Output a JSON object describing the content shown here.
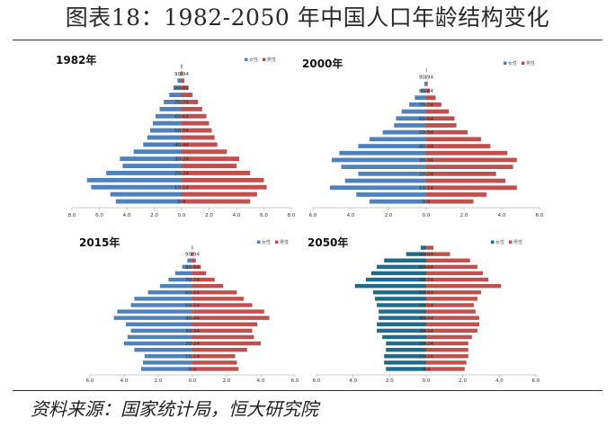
{
  "title": "图表18：1982-2050 年中国人口年龄结构变化",
  "source": "资料来源：国家统计局，恒大研究院",
  "chart_data": [
    {
      "type": "bar",
      "subtype": "population-pyramid",
      "title": "1982年",
      "legend": [
        "女性",
        "男性"
      ],
      "legend_position": "top-right",
      "x_ticks": [
        "8.0",
        "6.0",
        "4.0",
        "2.0",
        "0.0",
        "2.0",
        "4.0",
        "6.0",
        "8.0"
      ],
      "xlim": [
        -8,
        8
      ],
      "age_labels": [
        "0-4",
        "10-14",
        "20-24",
        "30-34",
        "40-44",
        "50-54",
        "60-64",
        "70-74",
        "80-84",
        "90-94"
      ],
      "series": [
        {
          "name": "女性",
          "color": "#4f81bd",
          "values": [
            4.8,
            5.2,
            6.6,
            6.9,
            5.5,
            4.3,
            4.5,
            3.5,
            2.8,
            2.5,
            2.3,
            2.1,
            1.9,
            1.6,
            1.3,
            0.9,
            0.6,
            0.3,
            0.1,
            0.05
          ]
        },
        {
          "name": "男性",
          "color": "#c0504d",
          "values": [
            5.0,
            5.5,
            6.2,
            6.0,
            5.0,
            4.0,
            4.2,
            3.3,
            2.6,
            2.4,
            2.2,
            2.0,
            1.8,
            1.5,
            1.2,
            0.8,
            0.5,
            0.2,
            0.08,
            0.03
          ]
        }
      ]
    },
    {
      "type": "bar",
      "subtype": "population-pyramid",
      "title": "2000年",
      "legend": [
        "女性",
        "男性"
      ],
      "legend_position": "top-right",
      "x_ticks": [
        "6.0",
        "4.0",
        "2.0",
        "0.0",
        "2.0",
        "4.0",
        "6.0"
      ],
      "xlim": [
        -6,
        6
      ],
      "age_labels": [
        "0-4",
        "10-14",
        "20-24",
        "30-34",
        "40-44",
        "50-54",
        "60-64",
        "70-74",
        "80-84",
        "90-94"
      ],
      "series": [
        {
          "name": "女性",
          "color": "#4f81bd",
          "values": [
            3.0,
            3.7,
            5.1,
            4.3,
            3.6,
            4.5,
            5.0,
            4.6,
            3.6,
            3.0,
            2.3,
            1.7,
            1.6,
            1.3,
            0.9,
            0.6,
            0.3,
            0.1,
            0.03,
            0.01
          ]
        },
        {
          "name": "男性",
          "color": "#c0504d",
          "values": [
            2.5,
            3.2,
            4.8,
            4.2,
            3.7,
            4.6,
            4.8,
            4.3,
            3.4,
            2.9,
            2.2,
            1.6,
            1.5,
            1.2,
            0.8,
            0.5,
            0.2,
            0.08,
            0.02,
            0.01
          ]
        }
      ]
    },
    {
      "type": "bar",
      "subtype": "population-pyramid",
      "title": "2015年",
      "legend": [
        "女性",
        "男性"
      ],
      "legend_position": "top-right",
      "x_ticks": [
        "6.0",
        "4.0",
        "2.0",
        "0.0",
        "2.0",
        "4.0",
        "6.0"
      ],
      "xlim": [
        -6,
        6
      ],
      "age_labels": [
        "0-4",
        "10-14",
        "20-24",
        "30-34",
        "40-44",
        "50-54",
        "60-64",
        "70-74",
        "80-84",
        "90-94"
      ],
      "series": [
        {
          "name": "女性",
          "color": "#4f81bd",
          "values": [
            3.0,
            2.9,
            2.8,
            3.4,
            4.0,
            3.8,
            3.6,
            3.9,
            4.6,
            4.4,
            3.6,
            3.4,
            2.6,
            1.9,
            1.4,
            1.0,
            0.6,
            0.3,
            0.1,
            0.03
          ]
        },
        {
          "name": "男性",
          "color": "#c0504d",
          "values": [
            2.7,
            2.6,
            2.5,
            3.2,
            4.0,
            3.6,
            3.5,
            3.8,
            4.5,
            4.2,
            3.5,
            3.0,
            2.6,
            1.8,
            1.3,
            0.8,
            0.5,
            0.2,
            0.07,
            0.02
          ]
        }
      ]
    },
    {
      "type": "bar",
      "subtype": "population-pyramid",
      "title": "2050年",
      "legend": [
        "女性",
        "男性"
      ],
      "legend_position": "top-right",
      "x_ticks": [
        "6.0",
        "4.0",
        "2.0",
        "0.0",
        "2.0",
        "4.0",
        "6.0"
      ],
      "xlim": [
        -6,
        6
      ],
      "age_labels": [
        "0-4",
        "10-14",
        "20-24",
        "30-34",
        "40-44",
        "50-54",
        "60-64",
        "70-74",
        "80-84",
        "90-94"
      ],
      "series": [
        {
          "name": "女性",
          "color": "#1f6b8a",
          "values": [
            2.2,
            2.3,
            2.3,
            2.2,
            2.2,
            2.4,
            2.7,
            2.7,
            2.6,
            2.6,
            2.7,
            2.8,
            2.9,
            3.9,
            3.3,
            3.0,
            2.7,
            2.3,
            1.1,
            0.3
          ]
        },
        {
          "name": "男性",
          "color": "#c0504d",
          "values": [
            2.1,
            2.2,
            2.3,
            2.3,
            2.3,
            2.5,
            2.8,
            2.9,
            2.9,
            2.7,
            2.6,
            2.8,
            3.0,
            4.1,
            3.4,
            3.1,
            2.8,
            2.4,
            1.3,
            0.4
          ]
        }
      ]
    }
  ]
}
